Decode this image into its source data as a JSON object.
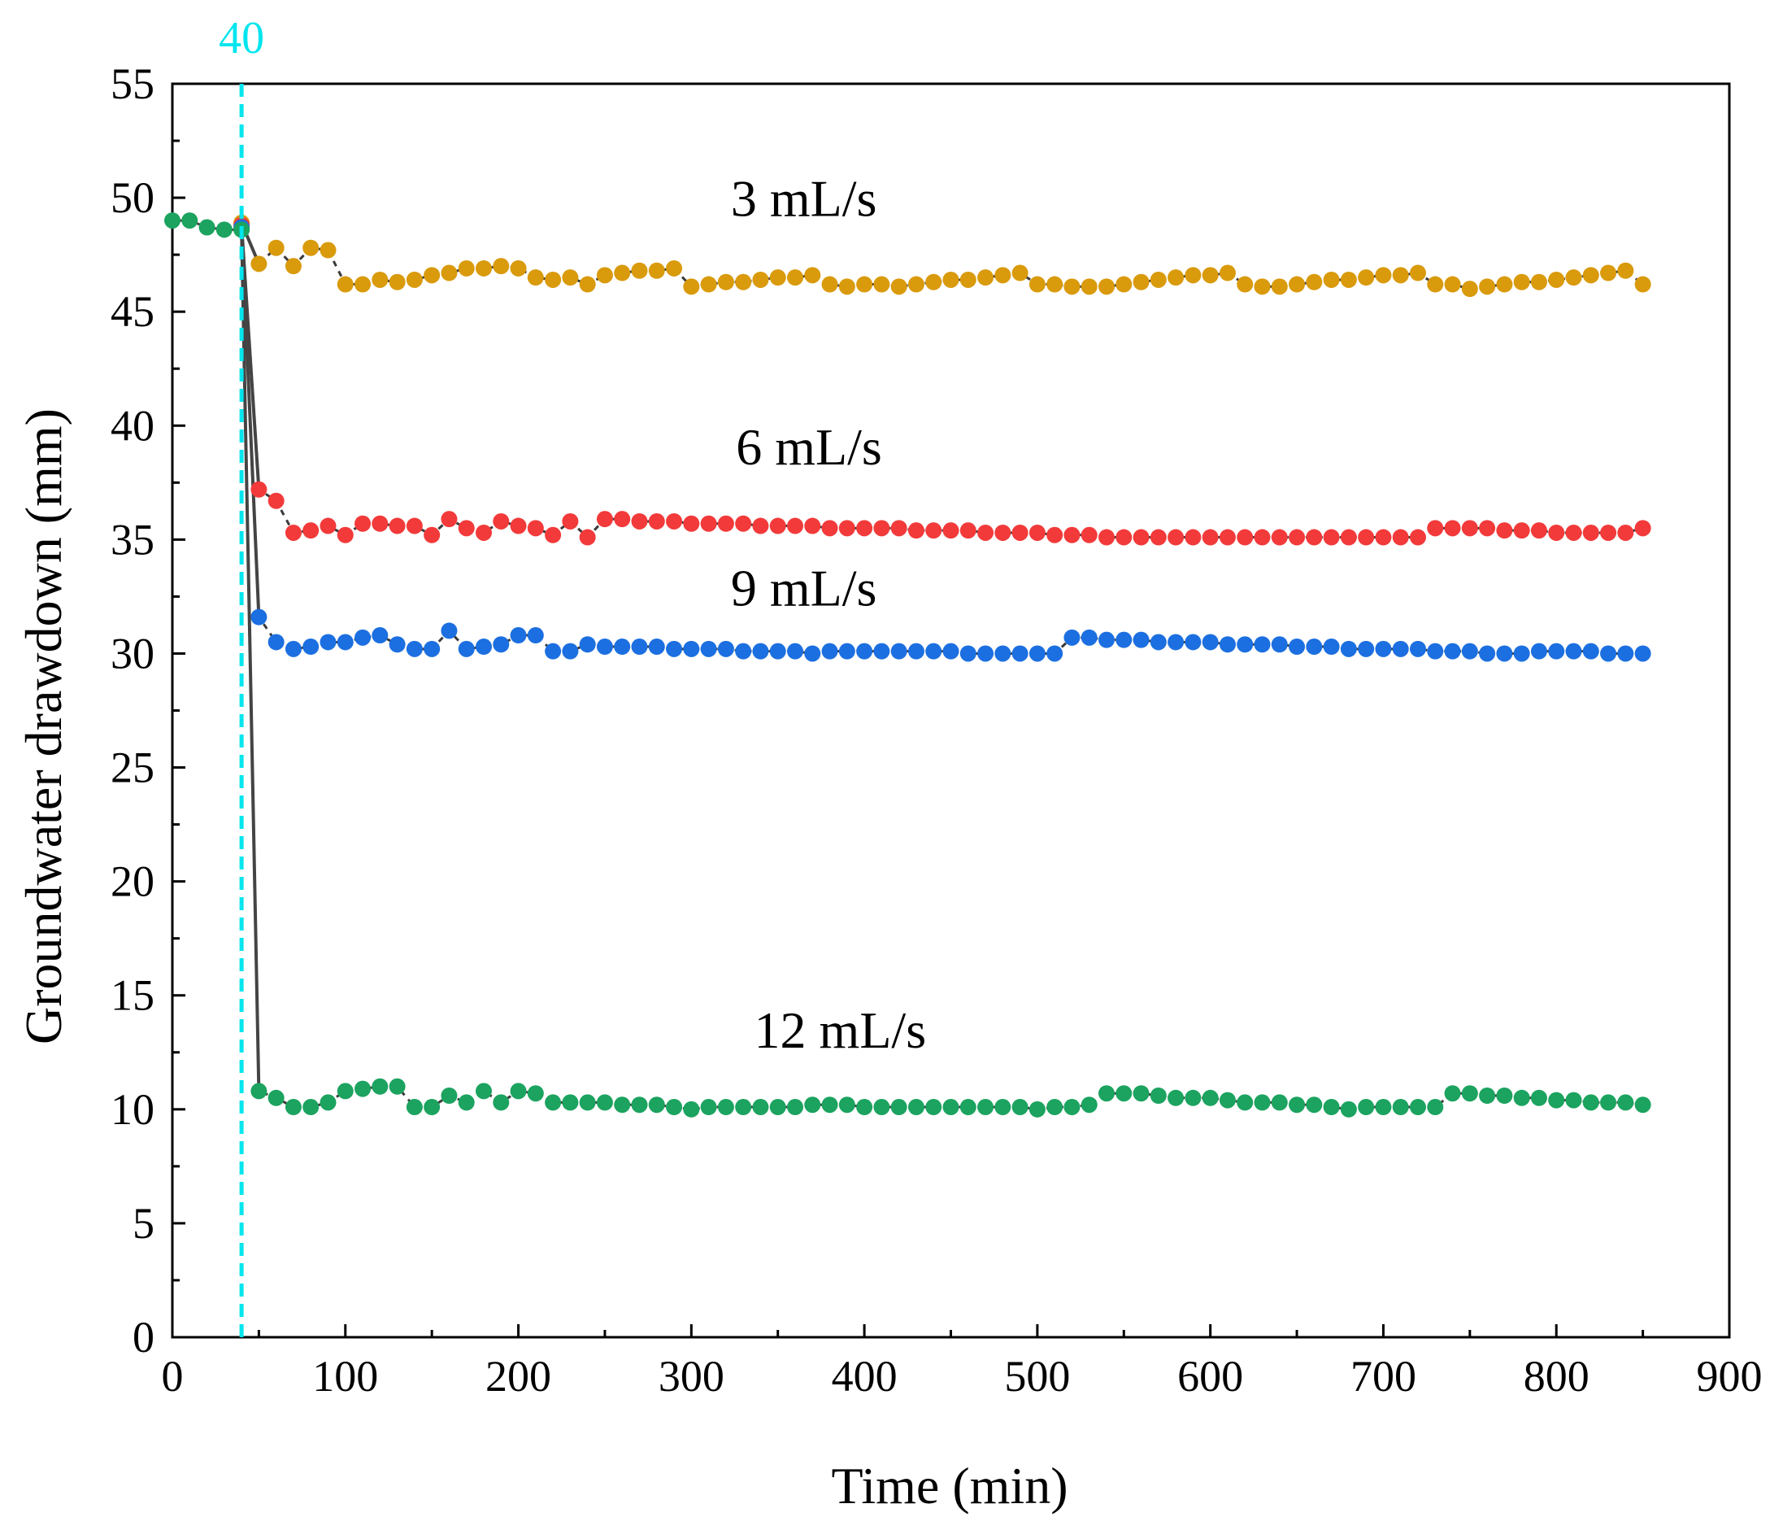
{
  "chart_data": {
    "type": "scatter",
    "xlabel": "Time (min)",
    "ylabel": "Groundwater drawdown (mm)",
    "xlim": [
      0,
      900
    ],
    "ylim": [
      0,
      55
    ],
    "xticks": [
      "0",
      "100",
      "200",
      "300",
      "400",
      "500",
      "600",
      "700",
      "800",
      "900"
    ],
    "yticks": [
      "0",
      "5",
      "10",
      "15",
      "20",
      "25",
      "30",
      "35",
      "40",
      "45",
      "50",
      "55"
    ],
    "grid": false,
    "vline": {
      "x": 40,
      "label": "40",
      "color": "#00E5EE"
    },
    "initial": {
      "color": "#1BA35F",
      "x": [
        0,
        10,
        20,
        30,
        40
      ],
      "y": [
        49.0,
        49.0,
        48.7,
        48.6,
        48.6
      ]
    },
    "series": [
      {
        "name": "3 mL/s",
        "color": "#D99A0C",
        "x": [
          40,
          50,
          60,
          70,
          80,
          90,
          100,
          110,
          120,
          130,
          140,
          150,
          160,
          170,
          180,
          190,
          200,
          210,
          220,
          230,
          240,
          250,
          260,
          270,
          280,
          290,
          300,
          310,
          320,
          330,
          340,
          350,
          360,
          370,
          380,
          390,
          400,
          410,
          420,
          430,
          440,
          450,
          460,
          470,
          480,
          490,
          500,
          510,
          520,
          530,
          540,
          550,
          560,
          570,
          580,
          590,
          600,
          610,
          620,
          630,
          640,
          650,
          660,
          670,
          680,
          690,
          700,
          710,
          720,
          730,
          740,
          750,
          760,
          770,
          780,
          790,
          800,
          810,
          820,
          830,
          840,
          850
        ],
        "y": [
          48.9,
          47.1,
          47.8,
          47.0,
          47.8,
          47.7,
          46.2,
          46.2,
          46.4,
          46.3,
          46.4,
          46.6,
          46.7,
          46.9,
          46.9,
          47.0,
          46.9,
          46.5,
          46.4,
          46.5,
          46.2,
          46.6,
          46.7,
          46.8,
          46.8,
          46.9,
          46.1,
          46.2,
          46.3,
          46.3,
          46.4,
          46.5,
          46.5,
          46.6,
          46.2,
          46.1,
          46.2,
          46.2,
          46.1,
          46.2,
          46.3,
          46.4,
          46.4,
          46.5,
          46.6,
          46.7,
          46.2,
          46.2,
          46.1,
          46.1,
          46.1,
          46.2,
          46.3,
          46.4,
          46.5,
          46.6,
          46.6,
          46.7,
          46.2,
          46.1,
          46.1,
          46.2,
          46.3,
          46.4,
          46.4,
          46.5,
          46.6,
          46.6,
          46.7,
          46.2,
          46.2,
          46.0,
          46.1,
          46.2,
          46.3,
          46.3,
          46.4,
          46.5,
          46.6,
          46.7,
          46.8,
          46.2
        ],
        "label_pos": [
          365,
          49.2
        ]
      },
      {
        "name": "6 mL/s",
        "color": "#F23A3A",
        "x": [
          40,
          50,
          60,
          70,
          80,
          90,
          100,
          110,
          120,
          130,
          140,
          150,
          160,
          170,
          180,
          190,
          200,
          210,
          220,
          230,
          240,
          250,
          260,
          270,
          280,
          290,
          300,
          310,
          320,
          330,
          340,
          350,
          360,
          370,
          380,
          390,
          400,
          410,
          420,
          430,
          440,
          450,
          460,
          470,
          480,
          490,
          500,
          510,
          520,
          530,
          540,
          550,
          560,
          570,
          580,
          590,
          600,
          610,
          620,
          630,
          640,
          650,
          660,
          670,
          680,
          690,
          700,
          710,
          720,
          730,
          740,
          750,
          760,
          770,
          780,
          790,
          800,
          810,
          820,
          830,
          840,
          850
        ],
        "y": [
          48.8,
          37.2,
          36.7,
          35.3,
          35.4,
          35.6,
          35.2,
          35.7,
          35.7,
          35.6,
          35.6,
          35.2,
          35.9,
          35.5,
          35.3,
          35.8,
          35.6,
          35.5,
          35.2,
          35.8,
          35.1,
          35.9,
          35.9,
          35.8,
          35.8,
          35.8,
          35.7,
          35.7,
          35.7,
          35.7,
          35.6,
          35.6,
          35.6,
          35.6,
          35.5,
          35.5,
          35.5,
          35.5,
          35.5,
          35.4,
          35.4,
          35.4,
          35.4,
          35.3,
          35.3,
          35.3,
          35.3,
          35.2,
          35.2,
          35.2,
          35.1,
          35.1,
          35.1,
          35.1,
          35.1,
          35.1,
          35.1,
          35.1,
          35.1,
          35.1,
          35.1,
          35.1,
          35.1,
          35.1,
          35.1,
          35.1,
          35.1,
          35.1,
          35.1,
          35.5,
          35.5,
          35.5,
          35.5,
          35.4,
          35.4,
          35.4,
          35.3,
          35.3,
          35.3,
          35.3,
          35.3,
          35.5
        ],
        "label_pos": [
          368,
          38.3
        ]
      },
      {
        "name": "9 mL/s",
        "color": "#1C6FE0",
        "x": [
          40,
          50,
          60,
          70,
          80,
          90,
          100,
          110,
          120,
          130,
          140,
          150,
          160,
          170,
          180,
          190,
          200,
          210,
          220,
          230,
          240,
          250,
          260,
          270,
          280,
          290,
          300,
          310,
          320,
          330,
          340,
          350,
          360,
          370,
          380,
          390,
          400,
          410,
          420,
          430,
          440,
          450,
          460,
          470,
          480,
          490,
          500,
          510,
          520,
          530,
          540,
          550,
          560,
          570,
          580,
          590,
          600,
          610,
          620,
          630,
          640,
          650,
          660,
          670,
          680,
          690,
          700,
          710,
          720,
          730,
          740,
          750,
          760,
          770,
          780,
          790,
          800,
          810,
          820,
          830,
          840,
          850
        ],
        "y": [
          48.7,
          31.6,
          30.5,
          30.2,
          30.3,
          30.5,
          30.5,
          30.7,
          30.8,
          30.4,
          30.2,
          30.2,
          31.0,
          30.2,
          30.3,
          30.4,
          30.8,
          30.8,
          30.1,
          30.1,
          30.4,
          30.3,
          30.3,
          30.3,
          30.3,
          30.2,
          30.2,
          30.2,
          30.2,
          30.1,
          30.1,
          30.1,
          30.1,
          30.0,
          30.1,
          30.1,
          30.1,
          30.1,
          30.1,
          30.1,
          30.1,
          30.1,
          30.0,
          30.0,
          30.0,
          30.0,
          30.0,
          30.0,
          30.7,
          30.7,
          30.6,
          30.6,
          30.6,
          30.5,
          30.5,
          30.5,
          30.5,
          30.4,
          30.4,
          30.4,
          30.4,
          30.3,
          30.3,
          30.3,
          30.2,
          30.2,
          30.2,
          30.2,
          30.2,
          30.1,
          30.1,
          30.1,
          30.0,
          30.0,
          30.0,
          30.1,
          30.1,
          30.1,
          30.1,
          30.0,
          30.0,
          30.0
        ],
        "label_pos": [
          365,
          32.1
        ]
      },
      {
        "name": "12 mL/s",
        "color": "#1BA35F",
        "x": [
          40,
          50,
          60,
          70,
          80,
          90,
          100,
          110,
          120,
          130,
          140,
          150,
          160,
          170,
          180,
          190,
          200,
          210,
          220,
          230,
          240,
          250,
          260,
          270,
          280,
          290,
          300,
          310,
          320,
          330,
          340,
          350,
          360,
          370,
          380,
          390,
          400,
          410,
          420,
          430,
          440,
          450,
          460,
          470,
          480,
          490,
          500,
          510,
          520,
          530,
          540,
          550,
          560,
          570,
          580,
          590,
          600,
          610,
          620,
          630,
          640,
          650,
          660,
          670,
          680,
          690,
          700,
          710,
          720,
          730,
          740,
          750,
          760,
          770,
          780,
          790,
          800,
          810,
          820,
          830,
          840,
          850
        ],
        "y": [
          48.6,
          10.8,
          10.5,
          10.1,
          10.1,
          10.3,
          10.8,
          10.9,
          11.0,
          11.0,
          10.1,
          10.1,
          10.6,
          10.3,
          10.8,
          10.3,
          10.8,
          10.7,
          10.3,
          10.3,
          10.3,
          10.3,
          10.2,
          10.2,
          10.2,
          10.1,
          10.0,
          10.1,
          10.1,
          10.1,
          10.1,
          10.1,
          10.1,
          10.2,
          10.2,
          10.2,
          10.1,
          10.1,
          10.1,
          10.1,
          10.1,
          10.1,
          10.1,
          10.1,
          10.1,
          10.1,
          10.0,
          10.1,
          10.1,
          10.2,
          10.7,
          10.7,
          10.7,
          10.6,
          10.5,
          10.5,
          10.5,
          10.4,
          10.3,
          10.3,
          10.3,
          10.2,
          10.2,
          10.1,
          10.0,
          10.1,
          10.1,
          10.1,
          10.1,
          10.1,
          10.7,
          10.7,
          10.6,
          10.6,
          10.5,
          10.5,
          10.4,
          10.4,
          10.3,
          10.3,
          10.3,
          10.2
        ],
        "label_pos": [
          386,
          12.7
        ]
      }
    ]
  }
}
